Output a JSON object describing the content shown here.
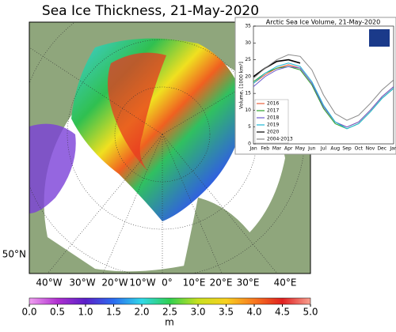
{
  "map": {
    "title": "Sea Ice Thickness, 21-May-2020",
    "lon_labels": [
      "40°W",
      "30°W",
      "20°W",
      "10°W",
      "0°",
      "10°E",
      "20°E",
      "30°E",
      "40°E"
    ],
    "lat_label": "50°N"
  },
  "colorbar": {
    "unit": "m",
    "clim": [
      0,
      5
    ],
    "ticks": [
      {
        "value": 0,
        "label": "0.0"
      },
      0.5,
      {
        "value": 1,
        "label": "1.0"
      },
      1.5,
      {
        "value": 2,
        "label": "2.0"
      },
      2.5,
      {
        "value": 3,
        "label": "3.0"
      },
      3.5,
      {
        "value": 4,
        "label": "4.0"
      },
      4.5,
      {
        "value": 5,
        "label": "5.0"
      }
    ]
  },
  "chart_data": {
    "type": "line",
    "title": "Arctic Sea Ice Volume, 21-May-2020",
    "y_label": "Volume, [1000 km³]",
    "categories": [
      "Jan",
      "Feb",
      "Mar",
      "Apr",
      "May",
      "Jun",
      "Jul",
      "Aug",
      "Sep",
      "Oct",
      "Nov",
      "Dec",
      "Jan"
    ],
    "ylim": [
      0,
      35
    ],
    "yticks": [
      0,
      5,
      10,
      15,
      20,
      25,
      30,
      35
    ],
    "legend": "lower left",
    "series": [
      {
        "name": "2016",
        "color": "#e8603c",
        "values": [
          18,
          20.5,
          22.5,
          23.5,
          22.5,
          18,
          11,
          6.5,
          5,
          6.5,
          10,
          14,
          17
        ]
      },
      {
        "name": "2017",
        "color": "#2ca02c",
        "values": [
          18.5,
          21,
          22.5,
          23,
          22,
          17.5,
          10.5,
          6,
          4.5,
          6,
          9.5,
          13.5,
          16.5
        ]
      },
      {
        "name": "2018",
        "color": "#6a5acd",
        "values": [
          17,
          20,
          22,
          23,
          22.5,
          18,
          11,
          6.5,
          5,
          6.5,
          10,
          14,
          17
        ]
      },
      {
        "name": "2019",
        "color": "#1fb8d6",
        "values": [
          18,
          21,
          23,
          24,
          23,
          18.5,
          11.5,
          6.5,
          4.5,
          6,
          9.5,
          13.5,
          16.5
        ]
      },
      {
        "name": "2020",
        "color": "#000000",
        "values": [
          20,
          22.5,
          24.5,
          25,
          24,
          null,
          null,
          null,
          null,
          null,
          null,
          null,
          null
        ]
      },
      {
        "name": "2004-2013",
        "color": "#888888",
        "values": [
          19.5,
          22.5,
          25,
          26.5,
          26,
          22,
          14.5,
          9,
          7,
          8.5,
          12,
          16,
          19
        ]
      }
    ]
  }
}
